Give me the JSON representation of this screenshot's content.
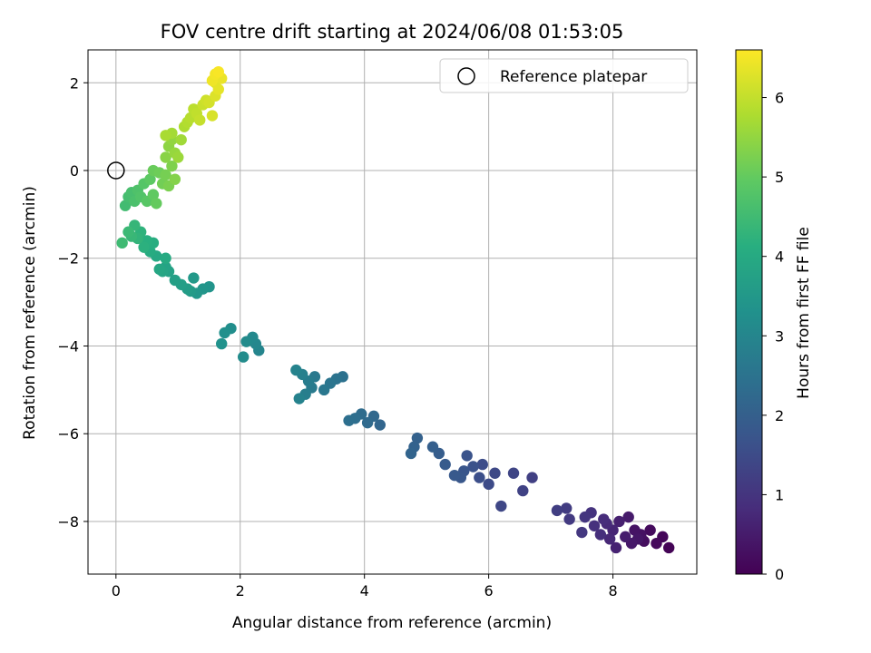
{
  "chart_data": {
    "type": "scatter",
    "title": "FOV centre drift starting at 2024/06/08 01:53:05",
    "xlabel": "Angular distance from reference (arcmin)",
    "ylabel": "Rotation from reference (arcmin)",
    "xlim": [
      -0.45,
      9.35
    ],
    "ylim": [
      -9.2,
      2.75
    ],
    "xticks": [
      0,
      2,
      4,
      6,
      8
    ],
    "yticks": [
      -8,
      -6,
      -4,
      -2,
      0,
      2
    ],
    "grid": true,
    "legend": {
      "placement": "top-right",
      "entries": [
        "Reference platepar"
      ]
    },
    "reference_point": {
      "x": 0,
      "y": 0,
      "marker": "hollow-circle"
    },
    "colorbar": {
      "label": "Hours from first FF file",
      "range": [
        0,
        6.6
      ],
      "ticks": [
        0,
        1,
        2,
        3,
        4,
        5,
        6
      ],
      "colormap": "viridis"
    },
    "series": [
      {
        "points": [
          [
            8.9,
            -8.6
          ],
          [
            8.8,
            -8.35
          ],
          [
            8.7,
            -8.5
          ],
          [
            8.6,
            -8.2
          ],
          [
            8.5,
            -8.45
          ],
          [
            8.45,
            -8.3
          ],
          [
            8.35,
            -8.2
          ],
          [
            8.4,
            -8.4
          ],
          [
            8.3,
            -8.5
          ],
          [
            8.25,
            -7.9
          ],
          [
            8.2,
            -8.35
          ],
          [
            8.1,
            -8.0
          ],
          [
            8.05,
            -8.6
          ],
          [
            8.0,
            -8.2
          ],
          [
            7.95,
            -8.4
          ],
          [
            7.9,
            -8.05
          ],
          [
            7.85,
            -7.95
          ],
          [
            7.8,
            -8.3
          ],
          [
            7.7,
            -8.1
          ],
          [
            7.65,
            -7.8
          ],
          [
            7.55,
            -7.9
          ],
          [
            7.5,
            -8.25
          ],
          [
            7.3,
            -7.95
          ],
          [
            7.25,
            -7.7
          ],
          [
            7.1,
            -7.75
          ],
          [
            6.7,
            -7.0
          ],
          [
            6.55,
            -7.3
          ],
          [
            6.4,
            -6.9
          ],
          [
            6.2,
            -7.65
          ],
          [
            6.1,
            -6.9
          ],
          [
            6.0,
            -7.15
          ],
          [
            5.9,
            -6.7
          ],
          [
            5.85,
            -7.0
          ],
          [
            5.75,
            -6.75
          ],
          [
            5.65,
            -6.5
          ],
          [
            5.6,
            -6.85
          ],
          [
            5.55,
            -7.0
          ],
          [
            5.45,
            -6.95
          ],
          [
            5.3,
            -6.7
          ],
          [
            5.2,
            -6.45
          ],
          [
            5.1,
            -6.3
          ],
          [
            4.85,
            -6.1
          ],
          [
            4.8,
            -6.3
          ],
          [
            4.75,
            -6.45
          ],
          [
            4.25,
            -5.8
          ],
          [
            4.15,
            -5.6
          ],
          [
            4.05,
            -5.75
          ],
          [
            3.95,
            -5.55
          ],
          [
            3.85,
            -5.65
          ],
          [
            3.75,
            -5.7
          ],
          [
            3.65,
            -4.7
          ],
          [
            3.55,
            -4.75
          ],
          [
            3.45,
            -4.85
          ],
          [
            3.35,
            -5.0
          ],
          [
            3.2,
            -4.7
          ],
          [
            3.15,
            -4.95
          ],
          [
            3.1,
            -4.8
          ],
          [
            3.05,
            -5.1
          ],
          [
            3.0,
            -4.65
          ],
          [
            2.95,
            -5.2
          ],
          [
            2.9,
            -4.55
          ],
          [
            2.3,
            -4.1
          ],
          [
            2.25,
            -3.95
          ],
          [
            2.2,
            -3.8
          ],
          [
            2.1,
            -3.9
          ],
          [
            2.05,
            -4.25
          ],
          [
            1.85,
            -3.6
          ],
          [
            1.75,
            -3.7
          ],
          [
            1.7,
            -3.95
          ],
          [
            1.5,
            -2.65
          ],
          [
            1.4,
            -2.7
          ],
          [
            1.3,
            -2.8
          ],
          [
            1.25,
            -2.45
          ],
          [
            1.2,
            -2.75
          ],
          [
            1.15,
            -2.7
          ],
          [
            1.05,
            -2.6
          ],
          [
            0.95,
            -2.5
          ],
          [
            0.85,
            -2.3
          ],
          [
            0.8,
            -2.2
          ],
          [
            0.75,
            -2.3
          ],
          [
            0.7,
            -2.25
          ],
          [
            0.65,
            -1.95
          ],
          [
            0.8,
            -2.0
          ],
          [
            0.55,
            -1.85
          ],
          [
            0.6,
            -1.65
          ],
          [
            0.5,
            -1.6
          ],
          [
            0.45,
            -1.75
          ],
          [
            0.4,
            -1.4
          ],
          [
            0.35,
            -1.55
          ],
          [
            0.3,
            -1.25
          ],
          [
            0.25,
            -1.5
          ],
          [
            0.2,
            -1.4
          ],
          [
            0.1,
            -1.65
          ],
          [
            0.15,
            -0.8
          ],
          [
            0.2,
            -0.6
          ],
          [
            0.25,
            -0.5
          ],
          [
            0.3,
            -0.7
          ],
          [
            0.35,
            -0.45
          ],
          [
            0.4,
            -0.6
          ],
          [
            0.45,
            -0.3
          ],
          [
            0.5,
            -0.7
          ],
          [
            0.55,
            -0.2
          ],
          [
            0.6,
            -0.55
          ],
          [
            0.65,
            -0.75
          ],
          [
            0.6,
            0.0
          ],
          [
            0.7,
            -0.05
          ],
          [
            0.75,
            -0.3
          ],
          [
            0.8,
            -0.1
          ],
          [
            0.85,
            -0.35
          ],
          [
            0.9,
            0.1
          ],
          [
            0.95,
            -0.2
          ],
          [
            0.8,
            0.3
          ],
          [
            0.85,
            0.55
          ],
          [
            0.9,
            0.7
          ],
          [
            0.95,
            0.4
          ],
          [
            1.0,
            0.3
          ],
          [
            1.05,
            0.7
          ],
          [
            0.9,
            0.85
          ],
          [
            0.8,
            0.8
          ],
          [
            1.1,
            1.0
          ],
          [
            1.15,
            1.1
          ],
          [
            1.2,
            1.2
          ],
          [
            1.25,
            1.4
          ],
          [
            1.3,
            1.3
          ],
          [
            1.35,
            1.15
          ],
          [
            1.4,
            1.5
          ],
          [
            1.45,
            1.6
          ],
          [
            1.5,
            1.55
          ],
          [
            1.55,
            1.25
          ],
          [
            1.6,
            1.7
          ],
          [
            1.6,
            2.0
          ],
          [
            1.65,
            1.85
          ],
          [
            1.7,
            2.1
          ],
          [
            1.55,
            2.05
          ],
          [
            1.6,
            2.2
          ],
          [
            1.65,
            2.25
          ]
        ]
      }
    ]
  }
}
